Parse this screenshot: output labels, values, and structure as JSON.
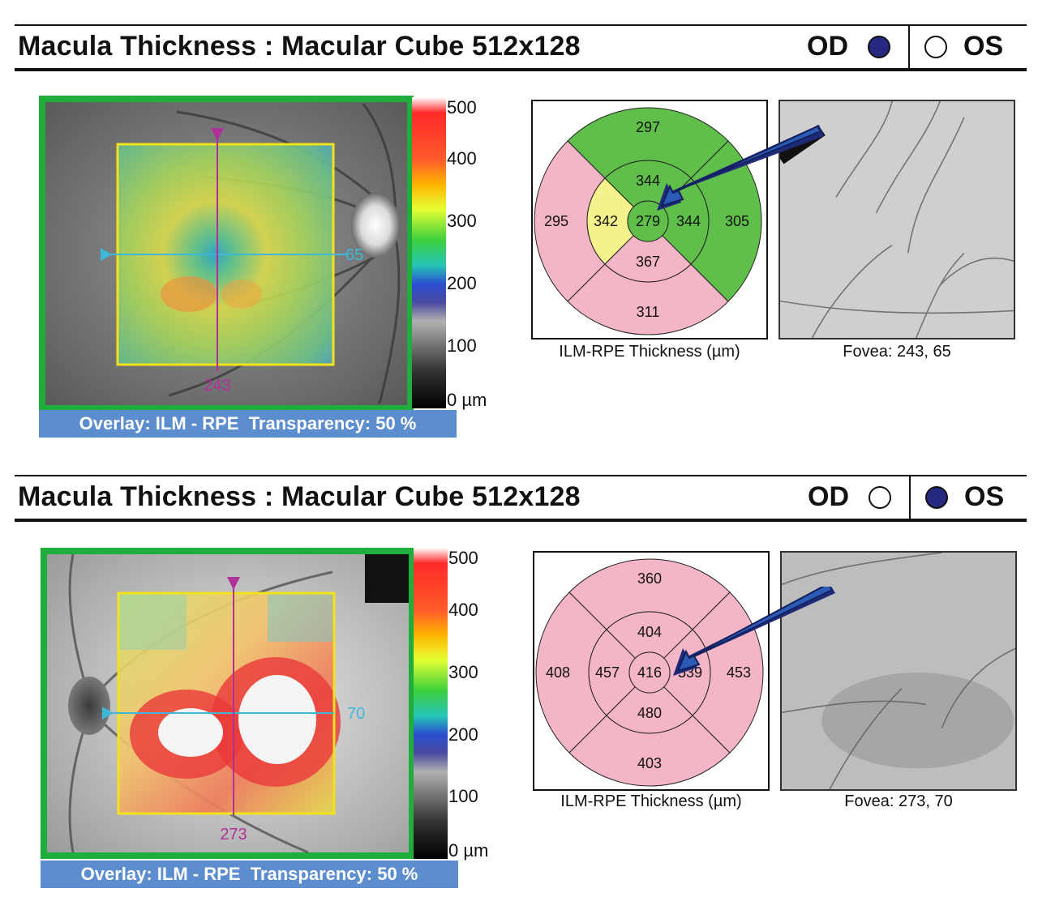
{
  "reports": [
    {
      "title": "Macula Thickness : Macular Cube 512x128",
      "eye": {
        "od_label": "OD",
        "os_label": "OS",
        "selected": "OD"
      },
      "scan_lines": {
        "horizontal_label": "65",
        "vertical_label": "243"
      },
      "colorbar": {
        "labels": [
          "500",
          "400",
          "300",
          "200",
          "100",
          "0 µm"
        ]
      },
      "overlay_text": "Overlay: ILM - RPE  Transparency: 50 %",
      "etdrs": {
        "center": "279",
        "inner": {
          "superior": "344",
          "temporal": "342",
          "nasal": "344",
          "inferior": "367"
        },
        "outer": {
          "superior": "297",
          "temporal": "295",
          "nasal": "305",
          "inferior": "311"
        },
        "sector_colors": {
          "center": "#5fbf4a",
          "inner_superior": "#5fbf4a",
          "inner_temporal": "#f5f18c",
          "inner_nasal": "#5fbf4a",
          "inner_inferior": "#f4b6c6",
          "outer_superior": "#5fbf4a",
          "outer_temporal": "#f4b6c6",
          "outer_nasal": "#5fbf4a",
          "outer_inferior": "#f4b6c6"
        },
        "caption": "ILM-RPE Thickness (µm)"
      },
      "fovea_caption": "Fovea: 243, 65"
    },
    {
      "title": "Macula Thickness : Macular Cube 512x128",
      "eye": {
        "od_label": "OD",
        "os_label": "OS",
        "selected": "OS"
      },
      "scan_lines": {
        "horizontal_label": "70",
        "vertical_label": "273"
      },
      "colorbar": {
        "labels": [
          "500",
          "400",
          "300",
          "200",
          "100",
          "0 µm"
        ]
      },
      "overlay_text": "Overlay: ILM - RPE  Transparency: 50 %",
      "etdrs": {
        "center": "416",
        "inner": {
          "superior": "404",
          "temporal": "457",
          "nasal": "539",
          "inferior": "480"
        },
        "outer": {
          "superior": "360",
          "temporal": "408",
          "nasal": "453",
          "inferior": "403"
        },
        "sector_colors": {
          "center": "#f4b6c6",
          "inner_superior": "#f4b6c6",
          "inner_temporal": "#f4b6c6",
          "inner_nasal": "#f4b6c6",
          "inner_inferior": "#f4b6c6",
          "outer_superior": "#f4b6c6",
          "outer_temporal": "#f4b6c6",
          "outer_nasal": "#f4b6c6",
          "outer_inferior": "#f4b6c6"
        },
        "caption": "ILM-RPE Thickness (µm)"
      },
      "fovea_caption": "Fovea: 273, 70"
    }
  ],
  "colors": {
    "frame_green": "#1fae3c",
    "grid_yellow": "#f2e21c",
    "scan_magenta": "#b0309a",
    "scan_cyan": "#3fb8d8",
    "arrow_blue": "#2a5bb5",
    "overlay_bar": "#5b8dcf",
    "eye_dot": "#26297f"
  }
}
